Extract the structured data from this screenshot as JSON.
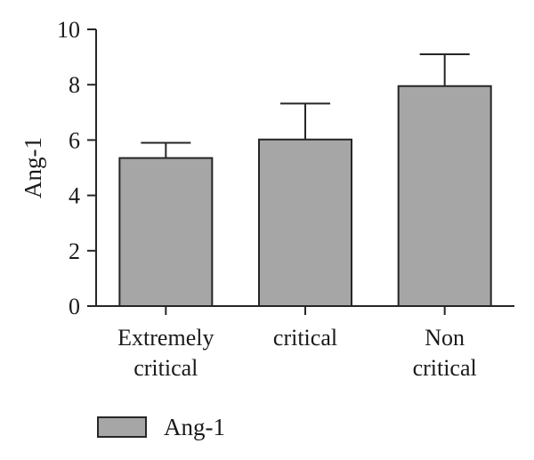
{
  "chart_data": {
    "type": "bar",
    "categories": [
      [
        "Extremely",
        "critical"
      ],
      [
        "critical"
      ],
      [
        "Non",
        "critical"
      ]
    ],
    "series": [
      {
        "name": "Ang-1",
        "values": [
          5.35,
          6.02,
          7.95
        ],
        "errors": [
          0.55,
          1.3,
          1.15
        ]
      }
    ],
    "xlabel": "",
    "ylabel": "Ang-1",
    "ylim": [
      0,
      10
    ],
    "yticks": [
      0,
      2,
      4,
      6,
      8,
      10
    ],
    "grid": false,
    "legend": "bottom-left",
    "colors": {
      "bar_fill": "#a6a6a6",
      "bar_stroke": "#262626",
      "axis": "#262626"
    }
  }
}
